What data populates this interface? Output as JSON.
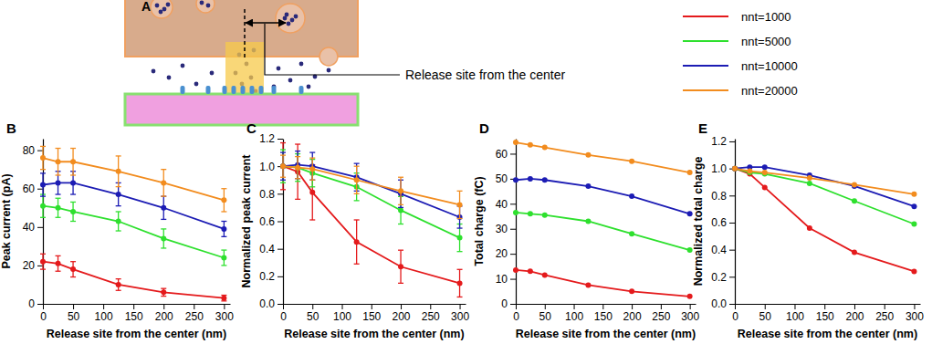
{
  "panel_a": {
    "label": "A",
    "annotation": "Release site from the center"
  },
  "shared_legend": {
    "entries": [
      {
        "name": "nnt=1000",
        "color": "#e41a1c"
      },
      {
        "name": "nnt=5000",
        "color": "#2ee02e"
      },
      {
        "name": "nnt=10000",
        "color": "#1c1cb4"
      },
      {
        "name": "nnt=20000",
        "color": "#f28c1e"
      }
    ]
  },
  "chart_data": [
    {
      "type": "line",
      "label": "B",
      "marker": "circle",
      "line_style": "solid",
      "x_label": "Release site from the center (nm)",
      "y_label": "Peak current (pA)",
      "x": [
        0,
        25,
        50,
        125,
        200,
        300
      ],
      "xlim": [
        0,
        310
      ],
      "xticks": [
        0,
        50,
        100,
        150,
        200,
        250,
        300
      ],
      "ylim": [
        0,
        86
      ],
      "yticks": [
        0,
        20,
        40,
        60,
        80
      ],
      "series": [
        {
          "color": "#e41a1c",
          "values": [
            22,
            21,
            18,
            10,
            6,
            3
          ],
          "errors": [
            4,
            4,
            4,
            3,
            2,
            1.5
          ]
        },
        {
          "color": "#2ee02e",
          "values": [
            51,
            50,
            48,
            43,
            34,
            24
          ],
          "errors": [
            6,
            5,
            5,
            5,
            5,
            4
          ]
        },
        {
          "color": "#1c1cb4",
          "values": [
            62,
            63,
            63,
            57,
            50,
            39
          ],
          "errors": [
            6,
            6,
            6,
            6,
            6,
            4
          ]
        },
        {
          "color": "#f28c1e",
          "values": [
            76,
            74,
            74,
            69,
            63,
            54
          ],
          "errors": [
            6,
            7,
            7,
            8,
            7,
            6
          ]
        }
      ]
    },
    {
      "type": "line",
      "label": "C",
      "marker": "circle",
      "line_style": "solid",
      "x_label": "Release site from the center (nm)",
      "y_label": "Normalized peak current",
      "x": [
        0,
        25,
        50,
        125,
        200,
        300
      ],
      "xlim": [
        0,
        310
      ],
      "xticks": [
        0,
        50,
        100,
        150,
        200,
        250,
        300
      ],
      "ylim": [
        0,
        1.2
      ],
      "yticks": [
        {
          "value": 0,
          "label": "0.0"
        },
        0.2,
        0.4,
        0.6,
        0.8,
        {
          "value": 1,
          "label": "1.0"
        },
        1.2
      ],
      "series": [
        {
          "color": "#e41a1c",
          "values": [
            1.0,
            0.96,
            0.81,
            0.45,
            0.27,
            0.15
          ],
          "errors": [
            0.17,
            0.2,
            0.2,
            0.16,
            0.12,
            0.1
          ]
        },
        {
          "color": "#2ee02e",
          "values": [
            1.0,
            0.99,
            0.95,
            0.85,
            0.68,
            0.48
          ],
          "errors": [
            0.12,
            0.1,
            0.1,
            0.1,
            0.1,
            0.1
          ]
        },
        {
          "color": "#1c1cb4",
          "values": [
            1.0,
            1.01,
            1.0,
            0.92,
            0.8,
            0.63
          ],
          "errors": [
            0.1,
            0.1,
            0.1,
            0.1,
            0.1,
            0.08
          ]
        },
        {
          "color": "#f28c1e",
          "values": [
            1.0,
            0.99,
            0.98,
            0.9,
            0.82,
            0.72
          ],
          "errors": [
            0.08,
            0.08,
            0.08,
            0.1,
            0.1,
            0.1
          ]
        }
      ]
    },
    {
      "type": "line",
      "label": "D",
      "marker": "circle",
      "line_style": "solid",
      "x_label": "Release site from the center (nm)",
      "y_label": "Total charge (fC)",
      "x": [
        0,
        25,
        50,
        125,
        200,
        300
      ],
      "xlim": [
        0,
        310
      ],
      "xticks": [
        0,
        50,
        100,
        150,
        200,
        250,
        300
      ],
      "ylim": [
        0,
        66
      ],
      "yticks": [
        0,
        10,
        20,
        30,
        40,
        50,
        60
      ],
      "series": [
        {
          "color": "#e41a1c",
          "values": [
            13.5,
            13,
            11.5,
            7.5,
            5,
            3
          ]
        },
        {
          "color": "#2ee02e",
          "values": [
            36.5,
            36,
            35.5,
            33,
            28,
            21.5
          ]
        },
        {
          "color": "#1c1cb4",
          "values": [
            49.5,
            50,
            49.5,
            47,
            43,
            36
          ]
        },
        {
          "color": "#f28c1e",
          "values": [
            64.5,
            63.5,
            62.5,
            59.5,
            57,
            52.5
          ]
        }
      ]
    },
    {
      "type": "line",
      "label": "E",
      "marker": "circle",
      "line_style": "solid",
      "x_label": "Release site from the center (nm)",
      "y_label": "Normalized total charge",
      "x": [
        0,
        25,
        50,
        125,
        200,
        300
      ],
      "xlim": [
        0,
        310
      ],
      "xticks": [
        0,
        50,
        100,
        150,
        200,
        250,
        300
      ],
      "ylim": [
        0,
        1.22
      ],
      "yticks": [
        {
          "value": 0,
          "label": "0.0"
        },
        0.2,
        0.4,
        0.6,
        0.8,
        {
          "value": 1,
          "label": "1.0"
        },
        1.2
      ],
      "series": [
        {
          "color": "#e41a1c",
          "values": [
            1.0,
            0.96,
            0.86,
            0.56,
            0.38,
            0.24
          ]
        },
        {
          "color": "#2ee02e",
          "values": [
            1.0,
            0.97,
            0.96,
            0.89,
            0.76,
            0.59
          ]
        },
        {
          "color": "#1c1cb4",
          "values": [
            1.0,
            1.01,
            1.01,
            0.95,
            0.87,
            0.72
          ]
        },
        {
          "color": "#f28c1e",
          "values": [
            1.0,
            0.98,
            0.97,
            0.93,
            0.88,
            0.81
          ]
        }
      ]
    }
  ]
}
